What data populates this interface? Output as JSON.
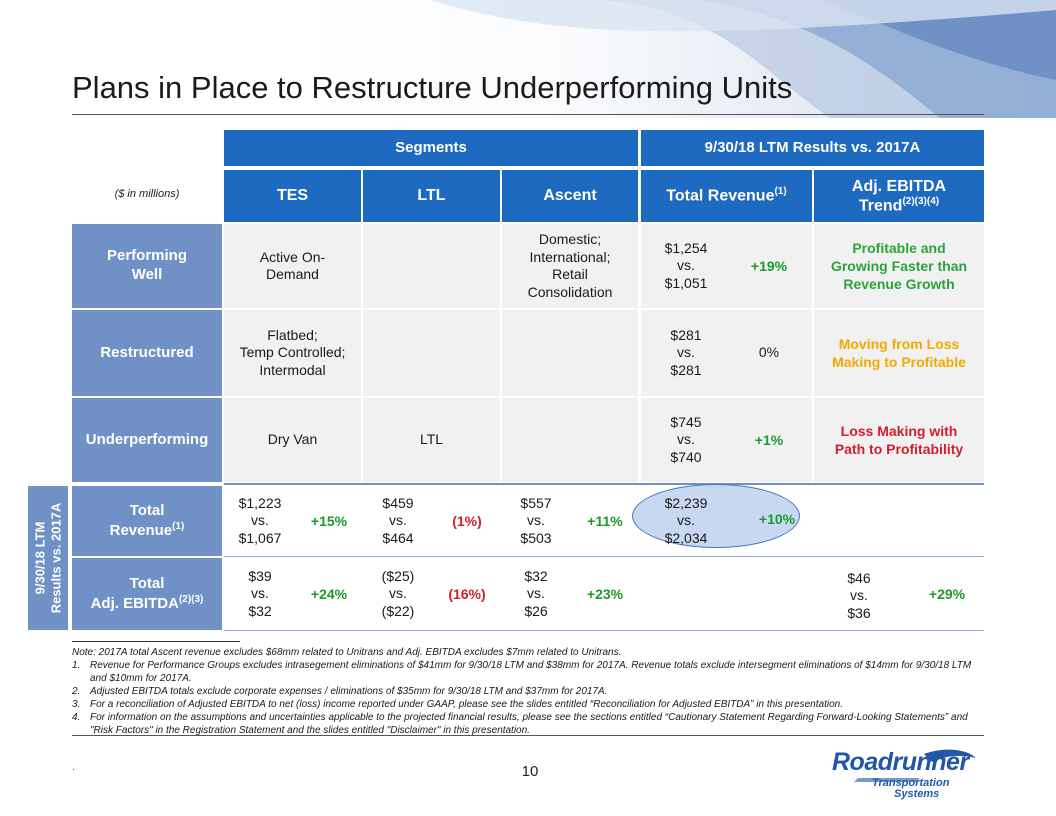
{
  "slide": {
    "title": "Plans in Place to Restructure Underperforming Units",
    "units": "($ in millions)",
    "page_number": "10",
    "dot": "."
  },
  "headers": {
    "segments": "Segments",
    "results": "9/30/18 LTM Results vs. 2017A",
    "tes": "TES",
    "ltl": "LTL",
    "ascent": "Ascent",
    "total_revenue": "Total Revenue",
    "total_revenue_sup": "(1)",
    "adj_ebitda_line1": "Adj. EBITDA",
    "adj_ebitda_line2": "Trend",
    "adj_ebitda_sup": "(2)(3)(4)"
  },
  "rows": {
    "performing": {
      "label_line1": "Performing",
      "label_line2": "Well",
      "tes_line1": "Active On-",
      "tes_line2": "Demand",
      "ascent_line1": "Domestic;",
      "ascent_line2": "International;",
      "ascent_line3": "Retail",
      "ascent_line4": "Consolidation",
      "rev_line1": "$1,254",
      "rev_line2": "vs.",
      "rev_line3": "$1,051",
      "rev_pct": "+19%",
      "trend_line1": "Profitable and",
      "trend_line2": "Growing Faster than",
      "trend_line3": "Revenue Growth"
    },
    "restructured": {
      "label": "Restructured",
      "tes_line1": "Flatbed;",
      "tes_line2": "Temp Controlled;",
      "tes_line3": "Intermodal",
      "rev_line1": "$281",
      "rev_line2": "vs.",
      "rev_line3": "$281",
      "rev_pct": "0%",
      "trend_line1": "Moving from Loss",
      "trend_line2": "Making to Profitable"
    },
    "underperforming": {
      "label": "Underperforming",
      "tes": "Dry Van",
      "ltl": "LTL",
      "rev_line1": "$745",
      "rev_line2": "vs.",
      "rev_line3": "$740",
      "rev_pct": "+1%",
      "trend_line1": "Loss Making with",
      "trend_line2": "Path to Profitability"
    },
    "total_revenue": {
      "label_line1": "Total",
      "label_line2": "Revenue",
      "label_sup": "(1)",
      "tes_line1": "$1,223",
      "tes_line2": "vs.",
      "tes_line3": "$1,067",
      "tes_pct": "+15%",
      "ltl_line1": "$459",
      "ltl_line2": "vs.",
      "ltl_line3": "$464",
      "ltl_pct": "(1%)",
      "ascent_line1": "$557",
      "ascent_line2": "vs.",
      "ascent_line3": "$503",
      "ascent_pct": "+11%",
      "total_line1": "$2,239",
      "total_line2": "vs.",
      "total_line3": "$2,034",
      "total_pct": "+10%"
    },
    "total_ebitda": {
      "label_line1": "Total",
      "label_line2": "Adj. EBITDA",
      "label_sup": "(2)(3)",
      "tes_line1": "$39",
      "tes_line2": "vs.",
      "tes_line3": "$32",
      "tes_pct": "+24%",
      "ltl_line1": "($25)",
      "ltl_line2": "vs.",
      "ltl_line3": "($22)",
      "ltl_pct": "(16%)",
      "ascent_line1": "$32",
      "ascent_line2": "vs.",
      "ascent_line3": "$26",
      "ascent_pct": "+23%",
      "total_line1": "$46",
      "total_line2": "vs.",
      "total_line3": "$36",
      "total_pct": "+29%"
    }
  },
  "side_label": {
    "line1": "9/30/18 LTM",
    "line2": "Results vs. 2017A"
  },
  "notes": {
    "intro": "Note: 2017A total Ascent revenue excludes $68mm related to Unitrans and Adj. EBITDA excludes $7mm related to Unitrans.",
    "items": [
      {
        "num": "1.",
        "text": "Revenue for Performance Groups excludes intrasegement eliminations of $41mm for 9/30/18 LTM and $38mm for 2017A. Revenue totals exclude intersegment eliminations of $14mm for 9/30/18 LTM and $10mm for 2017A."
      },
      {
        "num": "2.",
        "text": "Adjusted EBITDA totals exclude corporate expenses / eliminations of $35mm for 9/30/18 LTM and $37mm for 2017A."
      },
      {
        "num": "3.",
        "text": "For a reconciliation of Adjusted EBITDA to net (loss) income reported under GAAP, please see the slides entitled “Reconciliation for Adjusted EBITDA” in this presentation."
      },
      {
        "num": "4.",
        "text": "For information on the assumptions and uncertainties applicable to the projected financial results, please see the sections entitled “Cautionary Statement Regarding Forward-Looking Statements” and  \"Risk Factors\" in the Registration Statement and the slides entitled \"Disclaimer\" in this presentation."
      }
    ]
  },
  "logo": {
    "main": "Roadrunner",
    "sub1": "Transportation",
    "sub2": "Systems"
  },
  "colors": {
    "header_blue": "#1f6ac1",
    "label_blue": "#6f91c6",
    "positive_green": "#1a9a2a",
    "negative_red": "#d01f2a",
    "trend_green": "#2aa53a",
    "trend_orange": "#f2a900",
    "trend_red": "#d01f2a"
  }
}
